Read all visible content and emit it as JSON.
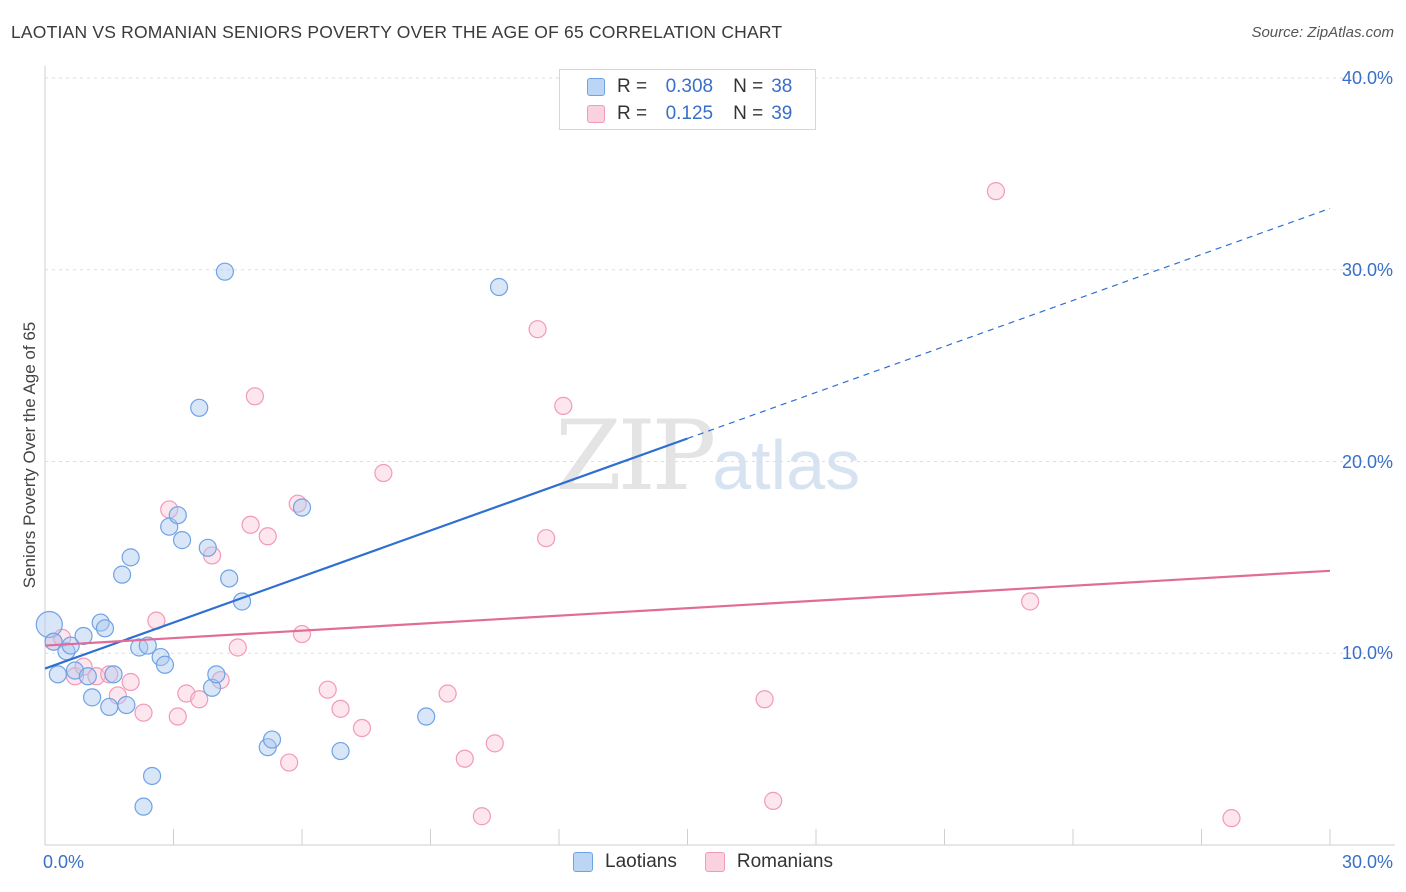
{
  "title": "LAOTIAN VS ROMANIAN SENIORS POVERTY OVER THE AGE OF 65 CORRELATION CHART",
  "source": "Source: ZipAtlas.com",
  "watermark": {
    "zip": "ZIP",
    "atlas": "atlas"
  },
  "legend": {
    "rows": [
      {
        "r_label": "R =",
        "r_value": "0.308",
        "n_label": "N =",
        "n_value": "38"
      },
      {
        "r_label": "R =",
        "r_value": "0.125",
        "n_label": "N =",
        "n_value": "39"
      }
    ]
  },
  "chart_data": {
    "type": "scatter",
    "title": "LAOTIAN VS ROMANIAN SENIORS POVERTY OVER THE AGE OF 65 CORRELATION CHART",
    "xlabel": "",
    "ylabel": "Seniors Poverty Over the Age of 65",
    "xlim": [
      0,
      30
    ],
    "ylim": [
      0,
      40
    ],
    "x_tick_labels": [
      "0.0%",
      "30.0%"
    ],
    "y_ticks": [
      10,
      20,
      30,
      40
    ],
    "y_tick_labels": [
      "10.0%",
      "20.0%",
      "30.0%",
      "40.0%"
    ],
    "grid": true,
    "legend_position": "top-center",
    "colors": {
      "laotians": "#6fa3e6",
      "romanians": "#f29ab6",
      "laotians_line": "#2f6fd1",
      "romanians_line": "#e06c97"
    },
    "series": [
      {
        "name": "Laotians",
        "r": 0.308,
        "n": 38,
        "points": [
          [
            0.1,
            11.5
          ],
          [
            0.2,
            10.6
          ],
          [
            0.3,
            8.9
          ],
          [
            0.5,
            10.1
          ],
          [
            0.6,
            10.4
          ],
          [
            0.7,
            9.1
          ],
          [
            0.9,
            10.9
          ],
          [
            1.0,
            8.8
          ],
          [
            1.1,
            7.7
          ],
          [
            1.3,
            11.6
          ],
          [
            1.4,
            11.3
          ],
          [
            1.5,
            7.2
          ],
          [
            1.6,
            8.9
          ],
          [
            1.8,
            14.1
          ],
          [
            1.9,
            7.3
          ],
          [
            2.0,
            15.0
          ],
          [
            2.2,
            10.3
          ],
          [
            2.3,
            2.0
          ],
          [
            2.4,
            10.4
          ],
          [
            2.5,
            3.6
          ],
          [
            2.7,
            9.8
          ],
          [
            2.8,
            9.4
          ],
          [
            2.9,
            16.6
          ],
          [
            3.1,
            17.2
          ],
          [
            3.2,
            15.9
          ],
          [
            3.6,
            22.8
          ],
          [
            3.8,
            15.5
          ],
          [
            3.9,
            8.2
          ],
          [
            4.0,
            8.9
          ],
          [
            4.2,
            29.9
          ],
          [
            4.3,
            13.9
          ],
          [
            4.6,
            12.7
          ],
          [
            5.2,
            5.1
          ],
          [
            5.3,
            5.5
          ],
          [
            6.0,
            17.6
          ],
          [
            6.9,
            4.9
          ],
          [
            8.9,
            6.7
          ],
          [
            10.6,
            29.1
          ]
        ],
        "trend": {
          "x": [
            0,
            15
          ],
          "y": [
            9.2,
            21.2
          ],
          "dashed_extension": {
            "x": [
              15,
              30
            ],
            "y": [
              21.2,
              33.2
            ]
          }
        }
      },
      {
        "name": "Romanians",
        "r": 0.125,
        "n": 39,
        "points": [
          [
            0.2,
            10.6
          ],
          [
            0.4,
            10.8
          ],
          [
            0.7,
            8.8
          ],
          [
            0.9,
            9.3
          ],
          [
            1.2,
            8.8
          ],
          [
            1.5,
            8.9
          ],
          [
            1.7,
            7.8
          ],
          [
            2.0,
            8.5
          ],
          [
            2.3,
            6.9
          ],
          [
            2.6,
            11.7
          ],
          [
            2.9,
            17.5
          ],
          [
            3.1,
            6.7
          ],
          [
            3.3,
            7.9
          ],
          [
            3.6,
            7.6
          ],
          [
            3.9,
            15.1
          ],
          [
            4.1,
            8.6
          ],
          [
            4.5,
            10.3
          ],
          [
            4.8,
            16.7
          ],
          [
            4.9,
            23.4
          ],
          [
            5.2,
            16.1
          ],
          [
            5.7,
            4.3
          ],
          [
            5.9,
            17.8
          ],
          [
            6.0,
            11.0
          ],
          [
            6.6,
            8.1
          ],
          [
            6.9,
            7.1
          ],
          [
            7.4,
            6.1
          ],
          [
            7.9,
            19.4
          ],
          [
            9.4,
            7.9
          ],
          [
            9.8,
            4.5
          ],
          [
            10.2,
            1.5
          ],
          [
            10.5,
            5.3
          ],
          [
            11.5,
            26.9
          ],
          [
            11.7,
            16.0
          ],
          [
            12.1,
            22.9
          ],
          [
            16.8,
            7.6
          ],
          [
            17.0,
            2.3
          ],
          [
            22.2,
            34.1
          ],
          [
            23.0,
            12.7
          ],
          [
            27.7,
            1.4
          ]
        ],
        "trend": {
          "x": [
            0,
            30
          ],
          "y": [
            10.4,
            14.3
          ]
        }
      }
    ]
  }
}
